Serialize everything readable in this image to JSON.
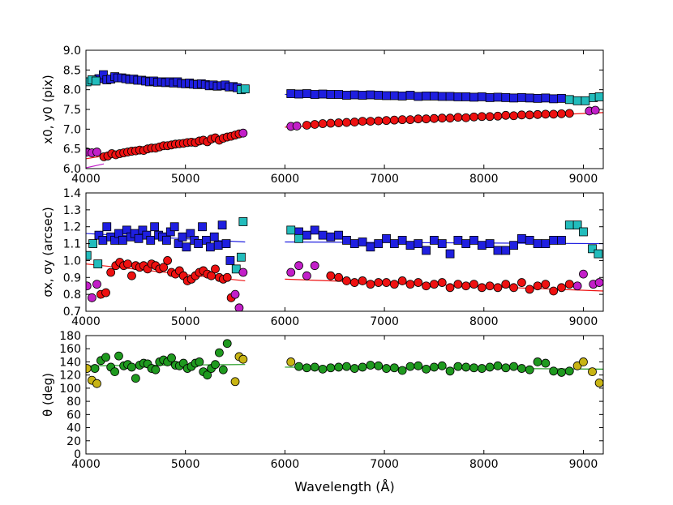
{
  "figure": {
    "xlabel": "Wavelength (Å)",
    "x_ticks": [
      "4000",
      "5000",
      "6000",
      "7000",
      "8000",
      "9000"
    ]
  },
  "chart_data": [
    {
      "type": "scatter",
      "panel": "top",
      "ylabel": "x0, y0 (pix)",
      "xlim": [
        4000,
        9200
      ],
      "ylim": [
        6.0,
        9.0
      ],
      "y_ticks": [
        "6.0",
        "6.5",
        "7.0",
        "7.5",
        "8.0",
        "8.5",
        "9.0"
      ],
      "series": [
        {
          "name": "y0 blue",
          "marker": "square",
          "color": "#1f1fe0",
          "x": [
            4130,
            4175,
            4210,
            4250,
            4290,
            4320,
            4360,
            4400,
            4440,
            4480,
            4520,
            4560,
            4600,
            4640,
            4680,
            4720,
            4760,
            4800,
            4840,
            4880,
            4920,
            4960,
            5000,
            5040,
            5080,
            5120,
            5160,
            5200,
            5240,
            5280,
            5320,
            5360,
            5400,
            5440,
            5480,
            5520,
            6060,
            6140,
            6220,
            6300,
            6380,
            6460,
            6540,
            6620,
            6700,
            6780,
            6860,
            6940,
            7020,
            7100,
            7180,
            7260,
            7340,
            7420,
            7500,
            7580,
            7660,
            7740,
            7820,
            7900,
            7980,
            8060,
            8140,
            8220,
            8300,
            8380,
            8460,
            8540,
            8620,
            8700,
            8780
          ],
          "y": [
            8.28,
            8.38,
            8.25,
            8.27,
            8.33,
            8.3,
            8.3,
            8.28,
            8.26,
            8.27,
            8.24,
            8.24,
            8.22,
            8.2,
            8.22,
            8.19,
            8.2,
            8.18,
            8.2,
            8.17,
            8.2,
            8.16,
            8.15,
            8.17,
            8.14,
            8.13,
            8.15,
            8.13,
            8.1,
            8.12,
            8.09,
            8.1,
            8.12,
            8.07,
            8.08,
            8.05,
            7.9,
            7.89,
            7.9,
            7.88,
            7.89,
            7.88,
            7.88,
            7.86,
            7.87,
            7.86,
            7.87,
            7.86,
            7.85,
            7.85,
            7.84,
            7.86,
            7.83,
            7.84,
            7.84,
            7.83,
            7.83,
            7.82,
            7.82,
            7.81,
            7.82,
            7.8,
            7.81,
            7.8,
            7.79,
            7.8,
            7.79,
            7.78,
            7.79,
            7.77,
            7.78
          ]
        },
        {
          "name": "y0 cyan",
          "marker": "square",
          "color": "#22bcbc",
          "x": [
            4010,
            4060,
            4100,
            5560,
            5600,
            8860,
            8940,
            9020,
            9100,
            9160
          ],
          "y": [
            8.2,
            8.25,
            8.22,
            8.0,
            8.02,
            7.75,
            7.72,
            7.72,
            7.8,
            7.82
          ]
        },
        {
          "name": "x0 red",
          "marker": "circle",
          "color": "#ee1111",
          "x": [
            4180,
            4220,
            4260,
            4300,
            4340,
            4380,
            4420,
            4460,
            4500,
            4540,
            4580,
            4620,
            4660,
            4700,
            4740,
            4780,
            4820,
            4860,
            4900,
            4940,
            4980,
            5020,
            5060,
            5100,
            5140,
            5180,
            5220,
            5260,
            5300,
            5340,
            5380,
            5420,
            5460,
            5500,
            5540,
            6220,
            6300,
            6380,
            6460,
            6540,
            6620,
            6700,
            6780,
            6860,
            6940,
            7020,
            7100,
            7180,
            7260,
            7340,
            7420,
            7500,
            7580,
            7660,
            7740,
            7820,
            7900,
            7980,
            8060,
            8140,
            8220,
            8300,
            8380,
            8460,
            8540,
            8620,
            8700,
            8780,
            8860
          ],
          "y": [
            6.3,
            6.32,
            6.38,
            6.35,
            6.38,
            6.4,
            6.42,
            6.44,
            6.45,
            6.47,
            6.46,
            6.5,
            6.52,
            6.52,
            6.55,
            6.58,
            6.58,
            6.6,
            6.62,
            6.63,
            6.64,
            6.66,
            6.67,
            6.66,
            6.7,
            6.72,
            6.68,
            6.75,
            6.78,
            6.72,
            6.77,
            6.8,
            6.82,
            6.85,
            6.88,
            7.1,
            7.12,
            7.14,
            7.15,
            7.16,
            7.17,
            7.18,
            7.2,
            7.2,
            7.21,
            7.22,
            7.23,
            7.24,
            7.24,
            7.26,
            7.26,
            7.27,
            7.28,
            7.28,
            7.3,
            7.29,
            7.31,
            7.32,
            7.32,
            7.33,
            7.35,
            7.34,
            7.36,
            7.36,
            7.37,
            7.38,
            7.38,
            7.39,
            7.4
          ]
        },
        {
          "name": "x0 magenta",
          "marker": "circle",
          "color": "#c21fc8",
          "x": [
            4010,
            4060,
            4110,
            5580,
            6060,
            6120,
            9060,
            9120
          ],
          "y": [
            6.42,
            6.4,
            6.42,
            6.9,
            7.07,
            7.08,
            7.46,
            7.48
          ]
        }
      ],
      "fits": [
        {
          "color": "#1f1fe0",
          "x": [
            4000,
            5600
          ],
          "y": [
            8.3,
            8.05
          ]
        },
        {
          "color": "#1f1fe0",
          "x": [
            6000,
            9200
          ],
          "y": [
            7.88,
            7.76
          ]
        },
        {
          "color": "#ee1111",
          "x": [
            4000,
            5600
          ],
          "y": [
            6.25,
            6.88
          ]
        },
        {
          "color": "#ee1111",
          "x": [
            6000,
            9200
          ],
          "y": [
            7.05,
            7.42
          ]
        },
        {
          "color": "#c21fc8",
          "x": [
            4000,
            4180
          ],
          "y": [
            6.02,
            6.12
          ]
        }
      ]
    },
    {
      "type": "scatter",
      "panel": "middle",
      "ylabel": "σx, σy (arcsec)",
      "xlim": [
        4000,
        9200
      ],
      "ylim": [
        0.7,
        1.4
      ],
      "y_ticks": [
        "0.7",
        "0.8",
        "0.9",
        "1.0",
        "1.1",
        "1.2",
        "1.3",
        "1.4"
      ],
      "series": [
        {
          "name": "sigma_y blue",
          "marker": "square",
          "color": "#1f1fe0",
          "x": [
            4130,
            4170,
            4210,
            4250,
            4290,
            4330,
            4370,
            4410,
            4450,
            4490,
            4530,
            4570,
            4610,
            4650,
            4690,
            4730,
            4770,
            4810,
            4850,
            4890,
            4930,
            4970,
            5010,
            5050,
            5090,
            5130,
            5170,
            5210,
            5250,
            5290,
            5330,
            5370,
            5410,
            5450,
            6140,
            6220,
            6300,
            6380,
            6460,
            6540,
            6620,
            6700,
            6780,
            6860,
            6940,
            7020,
            7100,
            7180,
            7260,
            7340,
            7420,
            7500,
            7580,
            7660,
            7740,
            7820,
            7900,
            7980,
            8060,
            8140,
            8220,
            8300,
            8380,
            8460,
            8540,
            8620,
            8700,
            8780
          ],
          "y": [
            1.15,
            1.12,
            1.2,
            1.14,
            1.12,
            1.16,
            1.12,
            1.18,
            1.14,
            1.16,
            1.13,
            1.18,
            1.15,
            1.12,
            1.2,
            1.15,
            1.14,
            1.12,
            1.17,
            1.2,
            1.1,
            1.14,
            1.08,
            1.16,
            1.12,
            1.1,
            1.2,
            1.12,
            1.08,
            1.14,
            1.09,
            1.21,
            1.1,
            1.0,
            1.17,
            1.15,
            1.18,
            1.15,
            1.14,
            1.15,
            1.12,
            1.1,
            1.11,
            1.08,
            1.1,
            1.13,
            1.1,
            1.12,
            1.09,
            1.1,
            1.06,
            1.12,
            1.1,
            1.04,
            1.12,
            1.1,
            1.12,
            1.09,
            1.1,
            1.06,
            1.06,
            1.09,
            1.13,
            1.12,
            1.1,
            1.1,
            1.12,
            1.12
          ]
        },
        {
          "name": "sigma_y cyan",
          "marker": "square",
          "color": "#22bcbc",
          "x": [
            4010,
            4070,
            4120,
            5510,
            5560,
            5580,
            6060,
            6140,
            8860,
            8940,
            9000,
            9090,
            9150
          ],
          "y": [
            1.03,
            1.1,
            0.98,
            0.95,
            1.02,
            1.23,
            1.18,
            1.13,
            1.21,
            1.21,
            1.17,
            1.07,
            1.04
          ]
        },
        {
          "name": "sigma_x red",
          "marker": "circle",
          "color": "#ee1111",
          "x": [
            4150,
            4200,
            4250,
            4300,
            4340,
            4380,
            4420,
            4460,
            4500,
            4540,
            4580,
            4620,
            4660,
            4700,
            4740,
            4780,
            4820,
            4860,
            4900,
            4940,
            4980,
            5020,
            5060,
            5100,
            5140,
            5180,
            5220,
            5260,
            5300,
            5340,
            5380,
            5420,
            5460,
            6460,
            6540,
            6620,
            6700,
            6780,
            6860,
            6940,
            7020,
            7100,
            7180,
            7260,
            7340,
            7420,
            7500,
            7580,
            7660,
            7740,
            7820,
            7900,
            7980,
            8060,
            8140,
            8220,
            8300,
            8380,
            8460,
            8540,
            8620,
            8700,
            8780,
            8860
          ],
          "y": [
            0.8,
            0.81,
            0.93,
            0.97,
            0.99,
            0.97,
            0.98,
            0.91,
            0.97,
            0.96,
            0.97,
            0.95,
            0.98,
            0.97,
            0.95,
            0.96,
            1.0,
            0.93,
            0.92,
            0.94,
            0.91,
            0.88,
            0.89,
            0.91,
            0.93,
            0.94,
            0.92,
            0.91,
            0.95,
            0.9,
            0.89,
            0.9,
            0.78,
            0.91,
            0.9,
            0.88,
            0.87,
            0.88,
            0.86,
            0.87,
            0.87,
            0.86,
            0.88,
            0.86,
            0.87,
            0.85,
            0.86,
            0.87,
            0.84,
            0.86,
            0.85,
            0.86,
            0.84,
            0.85,
            0.84,
            0.86,
            0.84,
            0.87,
            0.83,
            0.85,
            0.86,
            0.82,
            0.84,
            0.86
          ]
        },
        {
          "name": "sigma_x magenta",
          "marker": "circle",
          "color": "#c21fc8",
          "x": [
            4010,
            4060,
            4110,
            5500,
            5540,
            5580,
            6060,
            6140,
            6220,
            6300,
            8940,
            9000,
            9100,
            9160
          ],
          "y": [
            0.85,
            0.78,
            0.86,
            0.8,
            0.72,
            0.93,
            0.93,
            0.97,
            0.91,
            0.97,
            0.85,
            0.92,
            0.86,
            0.87
          ]
        }
      ],
      "fits": [
        {
          "color": "#1f1fe0",
          "x": [
            4000,
            5600
          ],
          "y": [
            1.16,
            1.11
          ]
        },
        {
          "color": "#1f1fe0",
          "x": [
            6000,
            9200
          ],
          "y": [
            1.11,
            1.1
          ]
        },
        {
          "color": "#ee1111",
          "x": [
            4000,
            5600
          ],
          "y": [
            0.98,
            0.88
          ]
        },
        {
          "color": "#ee1111",
          "x": [
            6000,
            9200
          ],
          "y": [
            0.89,
            0.82
          ]
        }
      ]
    },
    {
      "type": "scatter",
      "panel": "bottom",
      "ylabel": "θ (deg)",
      "xlim": [
        4000,
        9200
      ],
      "ylim": [
        0,
        180
      ],
      "y_ticks": [
        "0",
        "20",
        "40",
        "60",
        "80",
        "100",
        "120",
        "140",
        "160",
        "180"
      ],
      "series": [
        {
          "name": "theta green",
          "marker": "circle",
          "color": "#1f9a1f",
          "x": [
            4090,
            4150,
            4200,
            4250,
            4290,
            4330,
            4380,
            4420,
            4460,
            4500,
            4540,
            4580,
            4620,
            4660,
            4700,
            4740,
            4780,
            4820,
            4860,
            4900,
            4940,
            4980,
            5020,
            5060,
            5100,
            5140,
            5180,
            5220,
            5260,
            5300,
            5340,
            5380,
            5420,
            6140,
            6220,
            6300,
            6380,
            6460,
            6540,
            6620,
            6700,
            6780,
            6860,
            6940,
            7020,
            7100,
            7180,
            7260,
            7340,
            7420,
            7500,
            7580,
            7660,
            7740,
            7820,
            7900,
            7980,
            8060,
            8140,
            8220,
            8300,
            8380,
            8460,
            8540,
            8620,
            8700,
            8780,
            8860
          ],
          "y": [
            130,
            142,
            147,
            132,
            125,
            149,
            134,
            136,
            132,
            115,
            135,
            138,
            137,
            130,
            128,
            140,
            143,
            140,
            146,
            135,
            134,
            138,
            130,
            133,
            138,
            140,
            125,
            120,
            130,
            136,
            154,
            128,
            168,
            133,
            131,
            132,
            129,
            131,
            132,
            133,
            130,
            132,
            135,
            134,
            130,
            131,
            127,
            133,
            134,
            129,
            132,
            134,
            126,
            133,
            132,
            131,
            130,
            132,
            134,
            131,
            133,
            130,
            128,
            140,
            138,
            126,
            124,
            126
          ]
        },
        {
          "name": "theta olive",
          "marker": "circle",
          "color": "#c8b414",
          "x": [
            4010,
            4060,
            4110,
            5500,
            5540,
            5580,
            6060,
            8940,
            9000,
            9090,
            9160
          ],
          "y": [
            130,
            112,
            107,
            110,
            148,
            144,
            140,
            134,
            140,
            125,
            108
          ]
        }
      ],
      "fits": [
        {
          "color": "#1f9a1f",
          "x": [
            4000,
            5600
          ],
          "y": [
            134,
            136
          ]
        },
        {
          "color": "#1f9a1f",
          "x": [
            6000,
            9200
          ],
          "y": [
            132,
            129
          ]
        }
      ]
    }
  ]
}
